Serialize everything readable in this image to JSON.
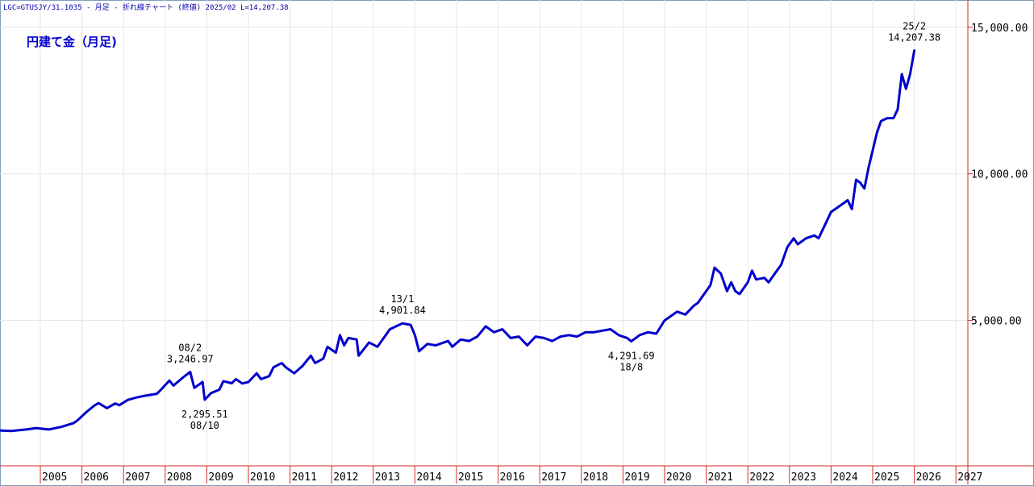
{
  "header": {
    "info": "LGC=GTUSJY/31.1035 - 月足 - 折れ線チャート (終値) 2025/02 L=14,207.38"
  },
  "chart_data": {
    "type": "line",
    "title": "円建て金（月足)",
    "line_color": "#0000cc",
    "grid_color": "#e6e6e6",
    "axis_color": "#d62a2a",
    "x_range": [
      2004.0,
      2027.5
    ],
    "ylim": [
      0,
      15500
    ],
    "yticks": [
      5000,
      10000,
      15000
    ],
    "ytick_labels": [
      "5,000.00",
      "10,000.00",
      "15,000.00"
    ],
    "xtick_labels": [
      "2005",
      "2006",
      "2007",
      "2008",
      "2009",
      "2010",
      "2011",
      "2012",
      "2013",
      "2014",
      "2015",
      "2016",
      "2017",
      "2018",
      "2019",
      "2020",
      "2021",
      "2022",
      "2023",
      "2024",
      "2025",
      "2026",
      "2027"
    ],
    "grid": true,
    "series": [
      {
        "values": [
          [
            2004.0,
            1250
          ],
          [
            2004.3,
            1230
          ],
          [
            2004.7,
            1290
          ],
          [
            2004.9,
            1330
          ],
          [
            2005.2,
            1280
          ],
          [
            2005.5,
            1370
          ],
          [
            2005.8,
            1500
          ],
          [
            2005.9,
            1600
          ],
          [
            2006.1,
            1870
          ],
          [
            2006.3,
            2100
          ],
          [
            2006.4,
            2180
          ],
          [
            2006.6,
            2010
          ],
          [
            2006.8,
            2170
          ],
          [
            2006.9,
            2110
          ],
          [
            2007.1,
            2290
          ],
          [
            2007.3,
            2370
          ],
          [
            2007.5,
            2430
          ],
          [
            2007.8,
            2500
          ],
          [
            2007.9,
            2640
          ],
          [
            2008.1,
            2950
          ],
          [
            2008.2,
            2780
          ],
          [
            2008.4,
            3020
          ],
          [
            2008.6,
            3247
          ],
          [
            2008.7,
            2700
          ],
          [
            2008.9,
            2900
          ],
          [
            2008.95,
            2296
          ],
          [
            2009.1,
            2520
          ],
          [
            2009.3,
            2640
          ],
          [
            2009.4,
            2930
          ],
          [
            2009.6,
            2860
          ],
          [
            2009.7,
            3000
          ],
          [
            2009.85,
            2850
          ],
          [
            2010.0,
            2900
          ],
          [
            2010.2,
            3200
          ],
          [
            2010.3,
            3000
          ],
          [
            2010.5,
            3100
          ],
          [
            2010.6,
            3400
          ],
          [
            2010.8,
            3550
          ],
          [
            2010.9,
            3400
          ],
          [
            2011.1,
            3200
          ],
          [
            2011.3,
            3450
          ],
          [
            2011.5,
            3800
          ],
          [
            2011.6,
            3550
          ],
          [
            2011.8,
            3700
          ],
          [
            2011.9,
            4100
          ],
          [
            2012.1,
            3900
          ],
          [
            2012.2,
            4500
          ],
          [
            2012.3,
            4150
          ],
          [
            2012.4,
            4400
          ],
          [
            2012.6,
            4350
          ],
          [
            2012.65,
            3800
          ],
          [
            2012.9,
            4250
          ],
          [
            2013.1,
            4100
          ],
          [
            2013.3,
            4500
          ],
          [
            2013.4,
            4700
          ],
          [
            2013.7,
            4902
          ],
          [
            2013.9,
            4850
          ],
          [
            2014.0,
            4500
          ],
          [
            2014.1,
            3950
          ],
          [
            2014.3,
            4200
          ],
          [
            2014.5,
            4150
          ],
          [
            2014.8,
            4300
          ],
          [
            2014.9,
            4100
          ],
          [
            2015.1,
            4350
          ],
          [
            2015.3,
            4300
          ],
          [
            2015.5,
            4450
          ],
          [
            2015.7,
            4800
          ],
          [
            2015.9,
            4600
          ],
          [
            2016.1,
            4700
          ],
          [
            2016.3,
            4400
          ],
          [
            2016.5,
            4450
          ],
          [
            2016.7,
            4150
          ],
          [
            2016.9,
            4450
          ],
          [
            2017.1,
            4400
          ],
          [
            2017.3,
            4300
          ],
          [
            2017.5,
            4450
          ],
          [
            2017.7,
            4500
          ],
          [
            2017.9,
            4450
          ],
          [
            2018.1,
            4600
          ],
          [
            2018.3,
            4600
          ],
          [
            2018.5,
            4650
          ],
          [
            2018.7,
            4700
          ],
          [
            2018.9,
            4500
          ],
          [
            2019.1,
            4400
          ],
          [
            2019.2,
            4292
          ],
          [
            2019.4,
            4500
          ],
          [
            2019.6,
            4600
          ],
          [
            2019.8,
            4550
          ],
          [
            2020.0,
            5000
          ],
          [
            2020.1,
            5100
          ],
          [
            2020.3,
            5300
          ],
          [
            2020.5,
            5200
          ],
          [
            2020.7,
            5500
          ],
          [
            2020.8,
            5600
          ],
          [
            2020.9,
            5800
          ],
          [
            2021.1,
            6200
          ],
          [
            2021.2,
            6800
          ],
          [
            2021.35,
            6600
          ],
          [
            2021.5,
            6000
          ],
          [
            2021.6,
            6300
          ],
          [
            2021.7,
            6000
          ],
          [
            2021.8,
            5900
          ],
          [
            2022.0,
            6300
          ],
          [
            2022.1,
            6700
          ],
          [
            2022.2,
            6400
          ],
          [
            2022.4,
            6450
          ],
          [
            2022.5,
            6300
          ],
          [
            2022.7,
            6700
          ],
          [
            2022.8,
            6900
          ],
          [
            2022.95,
            7500
          ],
          [
            2023.1,
            7800
          ],
          [
            2023.2,
            7600
          ],
          [
            2023.4,
            7800
          ],
          [
            2023.6,
            7900
          ],
          [
            2023.7,
            7800
          ],
          [
            2023.8,
            8100
          ],
          [
            2024.0,
            8700
          ],
          [
            2024.1,
            8800
          ],
          [
            2024.3,
            9000
          ],
          [
            2024.4,
            9100
          ],
          [
            2024.5,
            8800
          ],
          [
            2024.6,
            9800
          ],
          [
            2024.7,
            9700
          ],
          [
            2024.8,
            9500
          ],
          [
            2024.9,
            10200
          ],
          [
            2025.1,
            11400
          ],
          [
            2025.2,
            11800
          ],
          [
            2025.35,
            11900
          ],
          [
            2025.5,
            11900
          ],
          [
            2025.6,
            12200
          ],
          [
            2025.7,
            13400
          ],
          [
            2025.8,
            12900
          ],
          [
            2025.9,
            13400
          ],
          [
            2026.0,
            14207
          ]
        ]
      }
    ],
    "annotations": [
      {
        "id": "peak-2008",
        "lines": [
          "08/2",
          "3,246.97"
        ],
        "x": 2008.6,
        "y": 3247,
        "pos": "above"
      },
      {
        "id": "low-2008",
        "lines": [
          "2,295.51",
          "08/10"
        ],
        "x": 2008.95,
        "y": 2296,
        "pos": "below"
      },
      {
        "id": "peak-2013",
        "lines": [
          "13/1",
          "4,901.84"
        ],
        "x": 2013.7,
        "y": 4902,
        "pos": "above"
      },
      {
        "id": "low-2018",
        "lines": [
          "4,291.69",
          "18/8"
        ],
        "x": 2019.2,
        "y": 4292,
        "pos": "below"
      },
      {
        "id": "last-2025",
        "lines": [
          "25/2",
          "14,207.38"
        ],
        "x": 2026.0,
        "y": 14207,
        "pos": "above"
      }
    ]
  }
}
